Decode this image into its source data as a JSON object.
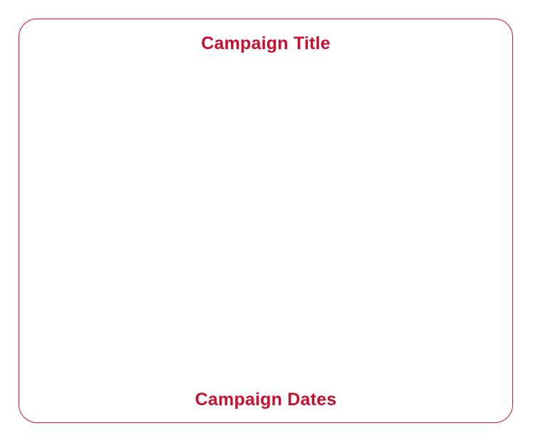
{
  "card": {
    "title": "Campaign Title",
    "dates": "Campaign Dates",
    "accent_color": "#c8102e"
  }
}
